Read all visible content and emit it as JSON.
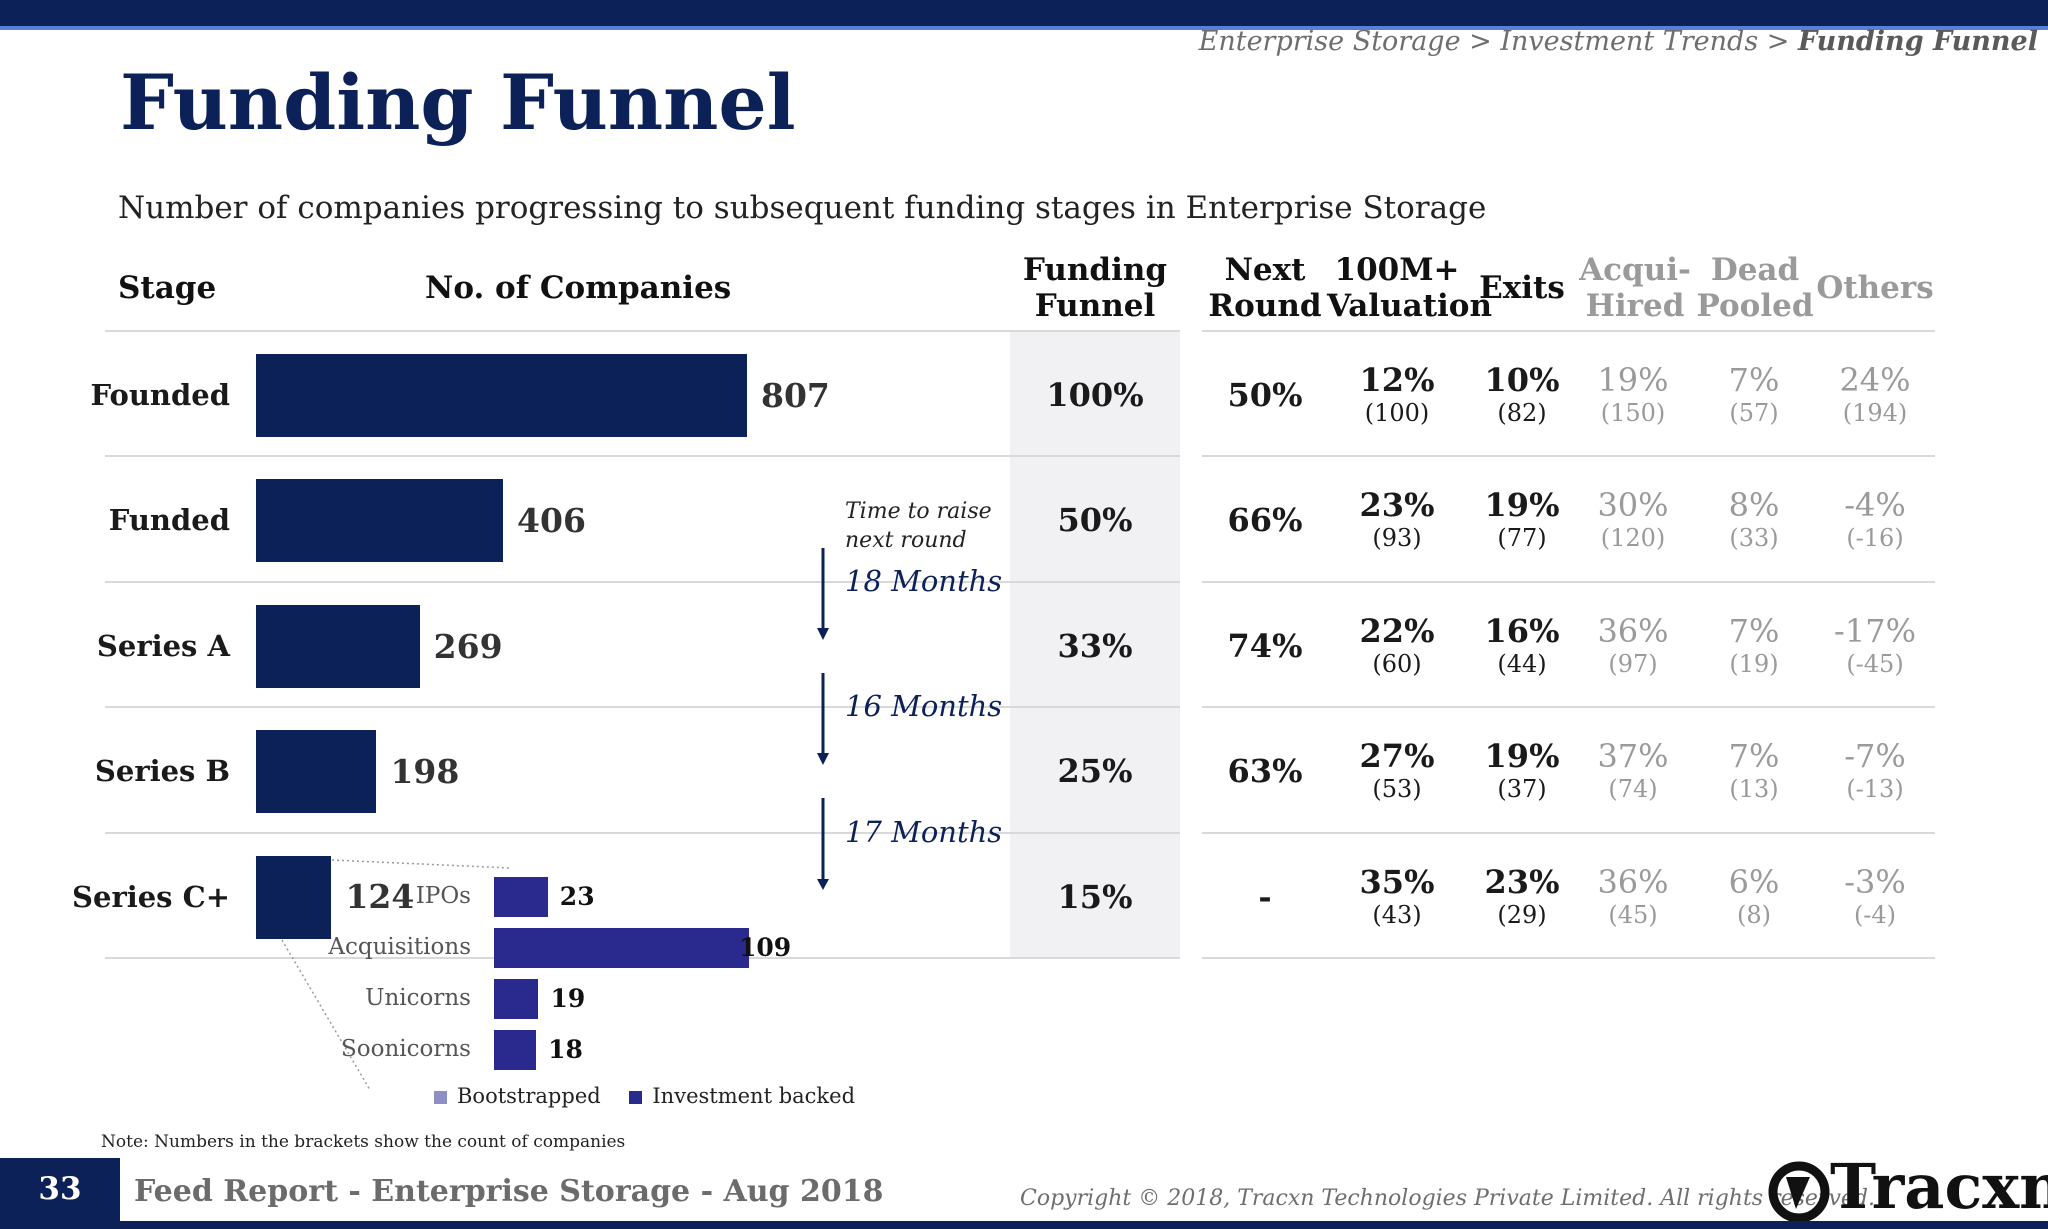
{
  "breadcrumb": {
    "part1": "Enterprise Storage > Investment Trends > ",
    "current": "Funding Funnel"
  },
  "page_title": "Funding Funnel",
  "subtitle": "Number of companies progressing to subsequent funding stages in Enterprise Storage",
  "headers": {
    "stage": "Stage",
    "companies": "No. of Companies",
    "funnel": [
      "Funding",
      "Funnel"
    ],
    "next_round": [
      "Next",
      "Round"
    ],
    "valuation": [
      "100M+",
      "Valuation"
    ],
    "exits": "Exits",
    "acquihired": [
      "Acqui-",
      "Hired"
    ],
    "dead": [
      "Dead",
      "Pooled"
    ],
    "others": "Others"
  },
  "chart_data": {
    "type": "bar",
    "orientation": "horizontal",
    "categories": [
      "Founded",
      "Funded",
      "Series A",
      "Series B",
      "Series C+"
    ],
    "values": [
      807,
      406,
      269,
      198,
      124
    ],
    "xlim": [
      0,
      807
    ],
    "series": [
      {
        "values": [
          807,
          406,
          269,
          198,
          124
        ]
      }
    ],
    "series_c_breakdown": {
      "categories": [
        "IPOs",
        "Acquisitions",
        "Unicorns",
        "Soonicorns"
      ],
      "series": [
        {
          "name": "Investment backed",
          "values": [
            23,
            109,
            19,
            18
          ]
        }
      ]
    },
    "legend": [
      "Bootstrapped",
      "Investment backed"
    ],
    "legend_position": "bottom"
  },
  "rows": [
    {
      "stage": "Founded",
      "count": "807",
      "funnel": "100%",
      "next": "50%",
      "valuation": {
        "pct": "12%",
        "cnt": "(100)"
      },
      "exits": {
        "pct": "10%",
        "cnt": "(82)"
      },
      "acqui": {
        "pct": "19%",
        "cnt": "(150)"
      },
      "dead": {
        "pct": "7%",
        "cnt": "(57)"
      },
      "others": {
        "pct": "24%",
        "cnt": "(194)"
      }
    },
    {
      "stage": "Funded",
      "count": "406",
      "funnel": "50%",
      "next": "66%",
      "valuation": {
        "pct": "23%",
        "cnt": "(93)"
      },
      "exits": {
        "pct": "19%",
        "cnt": "(77)"
      },
      "acqui": {
        "pct": "30%",
        "cnt": "(120)"
      },
      "dead": {
        "pct": "8%",
        "cnt": "(33)"
      },
      "others": {
        "pct": "-4%",
        "cnt": "(-16)"
      }
    },
    {
      "stage": "Series A",
      "count": "269",
      "funnel": "33%",
      "next": "74%",
      "valuation": {
        "pct": "22%",
        "cnt": "(60)"
      },
      "exits": {
        "pct": "16%",
        "cnt": "(44)"
      },
      "acqui": {
        "pct": "36%",
        "cnt": "(97)"
      },
      "dead": {
        "pct": "7%",
        "cnt": "(19)"
      },
      "others": {
        "pct": "-17%",
        "cnt": "(-45)"
      }
    },
    {
      "stage": "Series B",
      "count": "198",
      "funnel": "25%",
      "next": "63%",
      "valuation": {
        "pct": "27%",
        "cnt": "(53)"
      },
      "exits": {
        "pct": "19%",
        "cnt": "(37)"
      },
      "acqui": {
        "pct": "37%",
        "cnt": "(74)"
      },
      "dead": {
        "pct": "7%",
        "cnt": "(13)"
      },
      "others": {
        "pct": "-7%",
        "cnt": "(-13)"
      }
    },
    {
      "stage": "Series C+",
      "count": "124",
      "funnel": "15%",
      "next": "-",
      "valuation": {
        "pct": "35%",
        "cnt": "(43)"
      },
      "exits": {
        "pct": "23%",
        "cnt": "(29)"
      },
      "acqui": {
        "pct": "36%",
        "cnt": "(45)"
      },
      "dead": {
        "pct": "6%",
        "cnt": "(8)"
      },
      "others": {
        "pct": "-3%",
        "cnt": "(-4)"
      }
    }
  ],
  "time_to_raise": {
    "label_line1": "Time to raise",
    "label_line2": "next round",
    "intervals": [
      "18 Months",
      "16 Months",
      "17 Months"
    ]
  },
  "series_c_labels": {
    "ipos": "IPOs",
    "acq": "Acquisitions",
    "uni": "Unicorns",
    "soon": "Soonicorns",
    "ipos_v": "23",
    "acq_v": "109",
    "uni_v": "19",
    "soon_v": "18"
  },
  "legend": {
    "bootstrapped": "Bootstrapped",
    "investment": "Investment backed"
  },
  "note": "Note: Numbers in the brackets show the count of companies",
  "footer": {
    "page": "33",
    "report": "Feed Report - Enterprise Storage - Aug 2018",
    "copyright": "Copyright © 2018, Tracxn Technologies Private Limited. All rights reserved.",
    "logo": "Tracxn"
  },
  "colors": {
    "navy": "#0b2157",
    "indigo": "#2a2a8e",
    "bootstrapped": "#8f8fc7",
    "grey": "#9a9a9a"
  }
}
